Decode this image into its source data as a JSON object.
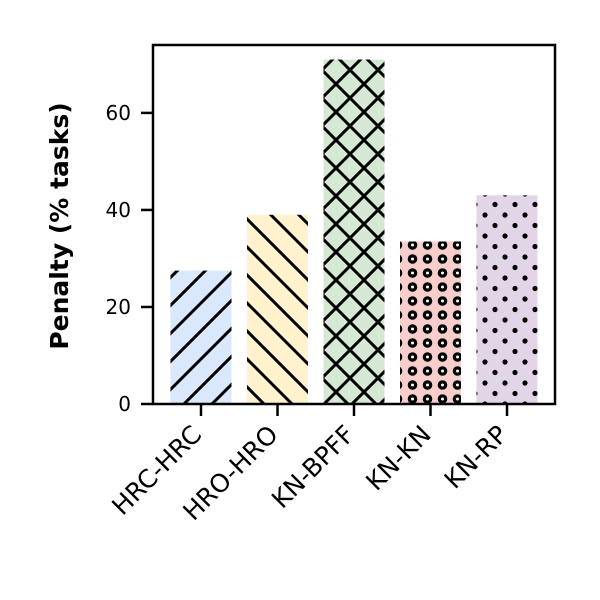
{
  "chart_data": {
    "type": "bar",
    "categories": [
      "HRC-HRC",
      "HRO-HRO",
      "KN-BPFF",
      "KN-KN",
      "KN-RP"
    ],
    "values": [
      27.5,
      39,
      71,
      33.5,
      43
    ],
    "ylabel": "Penalty (% tasks)",
    "xlabel": "",
    "ylim": [
      0,
      74
    ],
    "yticks": [
      0,
      20,
      40,
      60
    ],
    "grid": false,
    "bar_colors": [
      "#dae8fc",
      "#fff2cc",
      "#d5e8d4",
      "#f8cecc",
      "#e1d5e7"
    ],
    "bar_patterns": [
      "diagonal-lines",
      "back-diagonal-lines",
      "crosshatch",
      "ring-dots",
      "dots"
    ]
  }
}
